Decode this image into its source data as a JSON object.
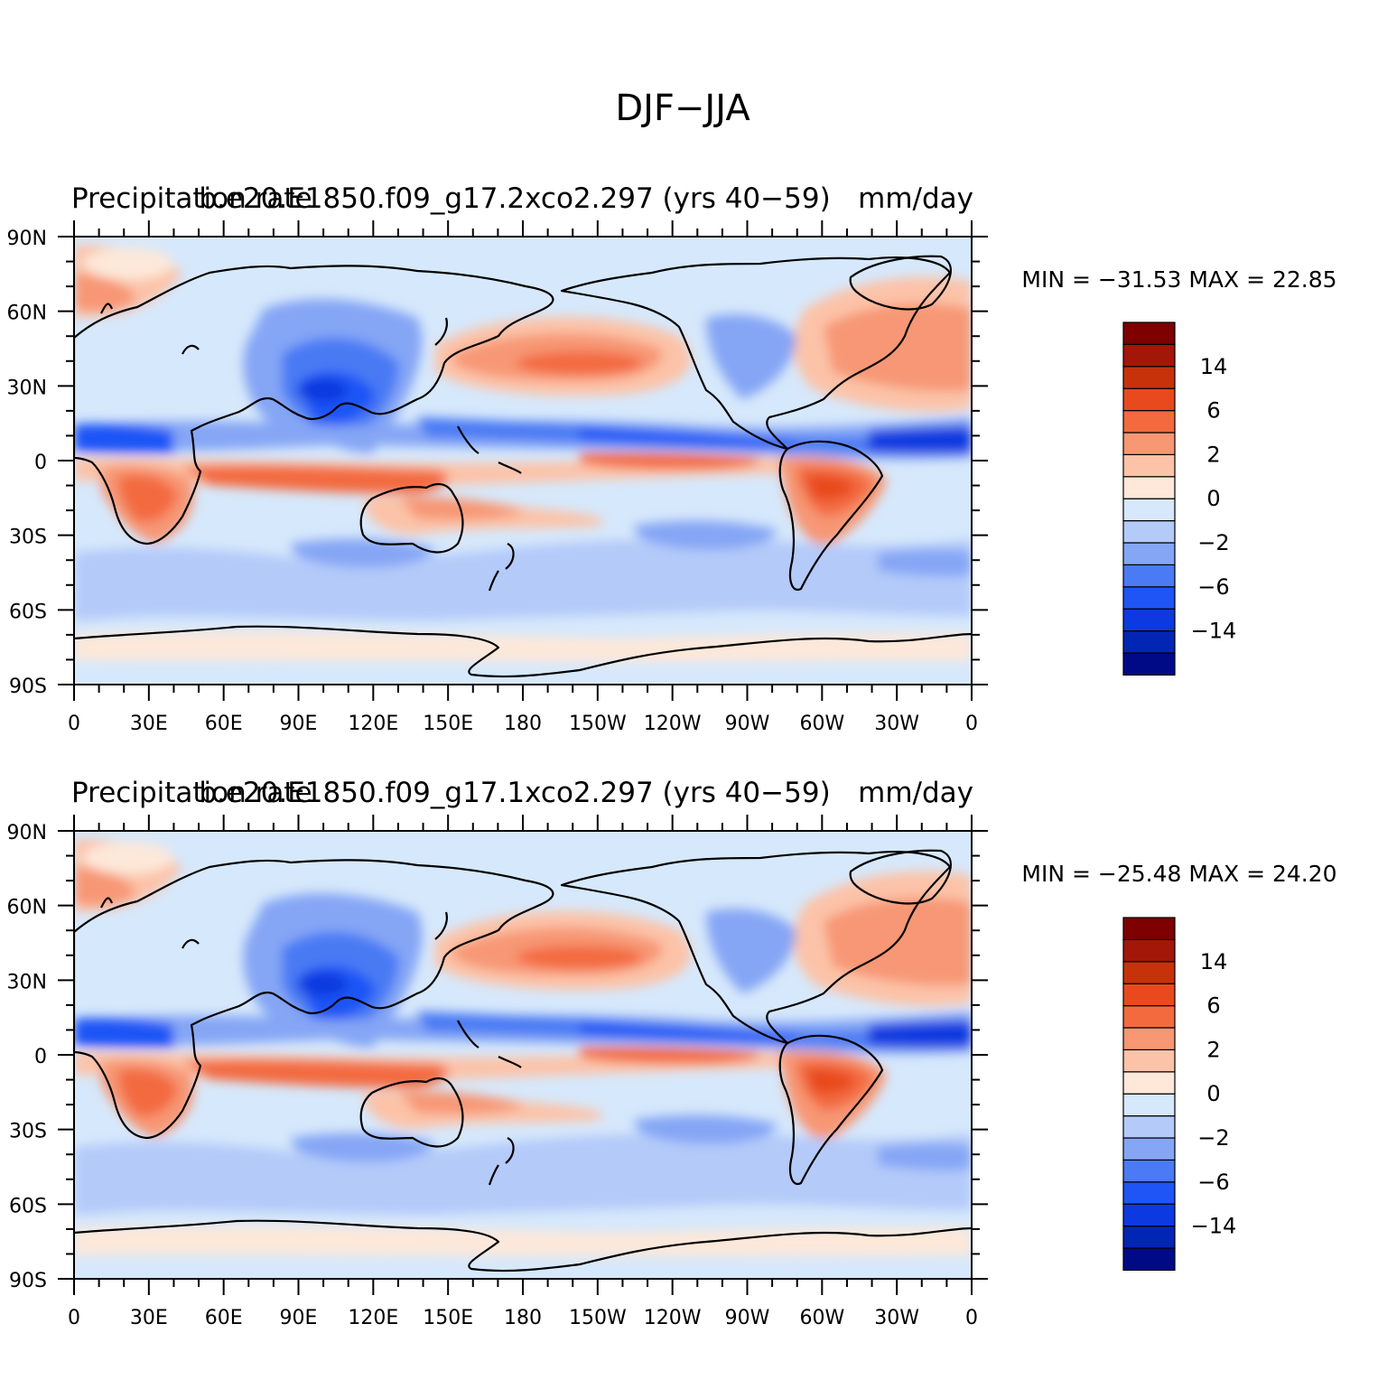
{
  "title": "DJF−JJA",
  "colors": {
    "ocean_light_blue": "#d6e8fb",
    "coast": "#000000"
  },
  "colorbar": {
    "fills": [
      "#000a87",
      "#0226b4",
      "#0d3ae0",
      "#1f55f6",
      "#4a7af4",
      "#85a6f5",
      "#b4caf9",
      "#d6e8fb",
      "#fde8d9",
      "#fcc3a8",
      "#f79774",
      "#f36a3f",
      "#e84a1d",
      "#c8320b",
      "#a31708",
      "#7e0000"
    ],
    "labels": [
      "14",
      "6",
      "2",
      "0",
      "−2",
      "−6",
      "−14"
    ]
  },
  "axes": {
    "lat_labels": [
      "90N",
      "60N",
      "30N",
      "0",
      "30S",
      "60S",
      "90S"
    ],
    "lon_labels": [
      "0",
      "30E",
      "60E",
      "90E",
      "120E",
      "150E",
      "180",
      "150W",
      "120W",
      "90W",
      "60W",
      "30W",
      "0"
    ]
  },
  "panels": [
    {
      "left_title": "Precipitation rate",
      "center_title": "b.e20.E1850.f09_g17.2xco2.297 (yrs 40−59)",
      "right_title": "mm/day",
      "minmax": "MIN = −31.53 MAX =   22.85"
    },
    {
      "left_title": "Precipitation rate",
      "center_title": "b.e20.E1850.f09_g17.1xco2.297 (yrs 40−59)",
      "right_title": "mm/day",
      "minmax": "MIN = −25.48 MAX =   24.20"
    }
  ]
}
